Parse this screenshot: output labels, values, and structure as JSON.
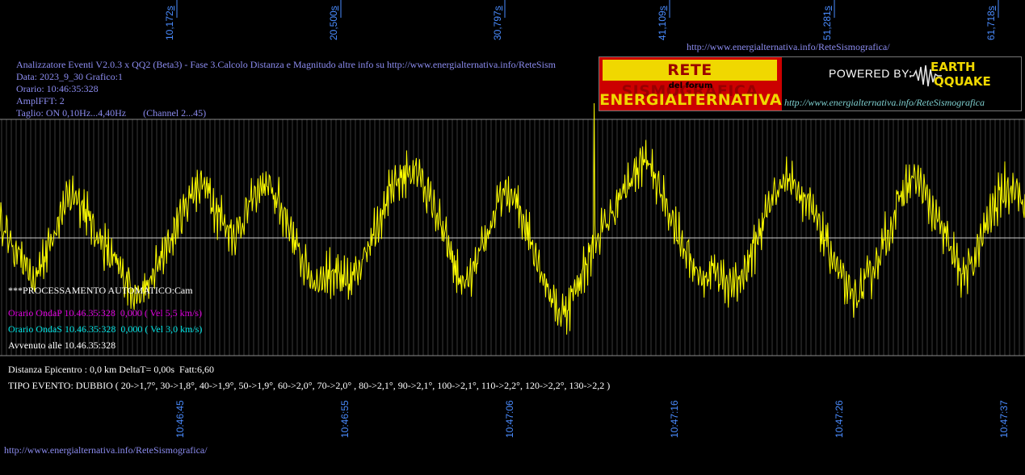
{
  "colors": {
    "background": "#000000",
    "trace": "#ffff00",
    "grid": "#555555",
    "header_text": "#8c8cf0",
    "tick_text": "#4a8cff",
    "onda_p": "#e000e0",
    "onda_s": "#00e6e6"
  },
  "header": {
    "top_url": "http://www.energialternativa.info/ReteSismografica/",
    "line1": "Analizzatore Eventi V2.0.3 x QQ2 (Beta3) - Fase 3.Calcolo Distanza e Magnitudo altre info su http://www.energialternativa.info/ReteSism",
    "line2": "Data: 2023_9_30 Grafico:1",
    "line3": "Orario: 10:46:35:328",
    "line4": "AmplFFT: 2",
    "line5": "Taglio: ON 0,10Hz...4,40Hz       (Channel 2...45)"
  },
  "logo": {
    "title": "RETE SISMOGRAFICA",
    "subtitle": "del forum",
    "name": "ENERGIALTERNATIVA",
    "powered_by": "POWERED BY:",
    "brand_top": "EARTH",
    "brand_bottom": "QQUAKE",
    "url": "http://www.energialternativa.info/ReteSismografica"
  },
  "results": {
    "processing": "***PROCESSAMENTO AUTOMATICO:Cam",
    "onda_p": "Orario OndaP 10.46.35:328  0,000 ( Vel 5,5 km/s)",
    "onda_s": "Orario OndaS 10.46.35:328  0,000 ( Vel 3,0 km/s)",
    "avvenuto": "Avvenuto alle 10.46.35:328",
    "distanza": "Distanza Epicentro : 0,0 km DeltaT= 0,00s  Fatt:6,60",
    "tipo_evento": "TIPO EVENTO: DUBBIO ( 20->1,7°, 30->1,8°, 40->1,9°, 50->1,9°, 60->2,0°, 70->2,0° , 80->2,1°, 90->2,1°, 100->2,1°, 110->2,2°, 120->2,2°, 130->2,2 )"
  },
  "footer_url": "http://www.energialternativa.info/ReteSismografica/",
  "chart_data": {
    "type": "line",
    "top_ticks": [
      {
        "num": "10,172",
        "unit": "s"
      },
      {
        "num": "20,500",
        "unit": "s"
      },
      {
        "num": "30,797",
        "unit": "s"
      },
      {
        "num": "41,109",
        "unit": "s"
      },
      {
        "num": "51,281",
        "unit": "s"
      },
      {
        "num": "61,718",
        "unit": "s"
      }
    ],
    "bottom_ticks": [
      "10:46:45",
      "10:46:55",
      "10:47:06",
      "10:47:16",
      "10:47:26",
      "10:47:37"
    ],
    "x_range_s": [
      0,
      62.4
    ],
    "y_range": [
      -1,
      1
    ],
    "grid": true,
    "series": [
      {
        "values": [
          0.22,
          0.05,
          -0.12,
          -0.25,
          -0.45,
          -0.55,
          -0.3,
          -0.1,
          0.15,
          0.35,
          0.5,
          0.55,
          0.4,
          0.2,
          0.05,
          -0.1,
          -0.25,
          -0.35,
          -0.5,
          -0.6,
          -0.72,
          -0.65,
          -0.5,
          -0.3,
          -0.15,
          0.05,
          0.25,
          0.45,
          0.6,
          0.7,
          0.58,
          0.4,
          0.25,
          0.1,
          0.05,
          0.2,
          0.4,
          0.55,
          0.65,
          0.6,
          0.45,
          0.3,
          0.1,
          -0.15,
          -0.35,
          -0.5,
          -0.55,
          -0.45,
          -0.4,
          -0.5,
          -0.6,
          -0.5,
          -0.3,
          -0.1,
          0.1,
          0.3,
          0.5,
          0.62,
          0.75,
          0.82,
          0.85,
          0.7,
          0.5,
          0.3,
          0.05,
          -0.2,
          -0.45,
          -0.6,
          -0.5,
          -0.3,
          -0.05,
          0.2,
          0.45,
          0.55,
          0.5,
          0.35,
          0.15,
          -0.1,
          -0.35,
          -0.6,
          -0.8,
          -0.95,
          -0.85,
          -0.65,
          -0.45,
          -0.25,
          -0.05,
          0.1,
          0.25,
          0.4,
          0.55,
          0.7,
          0.85,
          1.0,
          0.85,
          0.65,
          0.45,
          0.25,
          0.05,
          -0.15,
          -0.35,
          -0.45,
          -0.5,
          -0.4,
          -0.45,
          -0.55,
          -0.6,
          -0.5,
          -0.3,
          -0.1,
          0.15,
          0.4,
          0.6,
          0.7,
          0.75,
          0.65,
          0.5,
          0.35,
          0.2,
          0.0,
          -0.2,
          -0.4,
          -0.6,
          -0.75,
          -0.7,
          -0.55,
          -0.4,
          -0.2,
          0.0,
          0.25,
          0.5,
          0.65,
          0.75,
          0.65,
          0.45,
          0.25,
          0.1,
          -0.1,
          -0.3,
          -0.45,
          -0.4,
          -0.2,
          0.05,
          0.3,
          0.45,
          0.6,
          0.65,
          0.55,
          0.4
        ]
      }
    ]
  }
}
